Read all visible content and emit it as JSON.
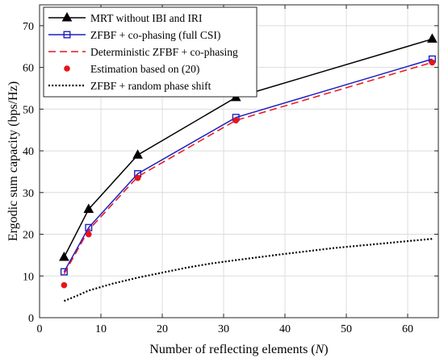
{
  "chart_data": {
    "type": "line",
    "xlabel_parts": [
      "Number of reflecting elements (",
      "N",
      ")"
    ],
    "ylabel": "Ergodic sum capacity (bps/Hz)",
    "xlim": [
      0,
      65
    ],
    "ylim": [
      0,
      75
    ],
    "xticks": [
      0,
      10,
      20,
      30,
      40,
      50,
      60
    ],
    "yticks": [
      0,
      10,
      20,
      30,
      40,
      50,
      60,
      70
    ],
    "grid": true,
    "legend_position": "top-left",
    "series": [
      {
        "name": "MRT without IBI and IRI",
        "color": "#000000",
        "style": "solid",
        "marker": "triangle",
        "x": [
          4,
          8,
          16,
          32,
          64
        ],
        "y": [
          14.5,
          26.0,
          39.0,
          52.8,
          66.8
        ]
      },
      {
        "name": "ZFBF + co-phasing (full CSI)",
        "color": "#1f1fbf",
        "style": "solid",
        "marker": "square",
        "x": [
          4,
          8,
          16,
          32,
          64
        ],
        "y": [
          11.0,
          21.6,
          34.5,
          48.0,
          62.0
        ]
      },
      {
        "name": "Deterministic ZFBF + co-phasing",
        "color": "#e8141a",
        "style": "dashed",
        "marker": "none",
        "x": [
          4,
          8,
          16,
          32,
          64
        ],
        "y": [
          10.5,
          21.0,
          33.8,
          47.3,
          61.2
        ]
      },
      {
        "name": "Estimation based on (20)",
        "color": "#e8141a",
        "style": "none",
        "marker": "circle",
        "x": [
          4,
          8,
          16,
          32,
          64
        ],
        "y": [
          7.8,
          20.0,
          33.5,
          47.3,
          61.2
        ]
      },
      {
        "name": "ZFBF + random phase shift",
        "color": "#000000",
        "style": "dotted",
        "marker": "none",
        "x": [
          4,
          6,
          8,
          12,
          16,
          20,
          24,
          28,
          32,
          40,
          48,
          56,
          64
        ],
        "y": [
          4.0,
          5.2,
          6.5,
          8.2,
          9.6,
          10.8,
          12.0,
          13.0,
          13.8,
          15.3,
          16.7,
          17.8,
          18.9
        ]
      }
    ]
  }
}
